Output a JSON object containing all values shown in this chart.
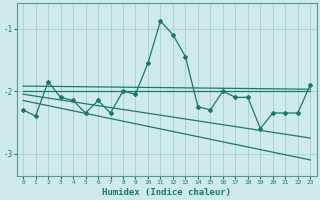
{
  "xlabel": "Humidex (Indice chaleur)",
  "bg_color": "#ceeaea",
  "grid_color": "#aacece",
  "line_color": "#1a7a6a",
  "spine_color": "#5a9a8a",
  "xlim": [
    -0.5,
    23.5
  ],
  "ylim": [
    -3.35,
    -0.6
  ],
  "yticks": [
    -3,
    -2,
    -1
  ],
  "xticks": [
    0,
    1,
    2,
    3,
    4,
    5,
    6,
    7,
    8,
    9,
    10,
    11,
    12,
    13,
    14,
    15,
    16,
    17,
    18,
    19,
    20,
    21,
    22,
    23
  ],
  "line1_x": [
    0,
    1,
    2,
    3,
    4,
    5,
    6,
    7,
    8,
    9,
    10,
    11,
    12,
    13,
    14,
    15,
    16,
    17,
    18,
    19,
    20,
    21,
    22,
    23
  ],
  "line1_y": [
    -2.3,
    -2.4,
    -1.85,
    -2.1,
    -2.15,
    -2.35,
    -2.15,
    -2.35,
    -2.0,
    -2.05,
    -1.55,
    -0.88,
    -1.1,
    -1.45,
    -2.25,
    -2.3,
    -2.0,
    -2.1,
    -2.1,
    -2.6,
    -2.35,
    -2.35,
    -2.35,
    -1.9
  ],
  "line2_x": [
    0,
    23
  ],
  "line2_y": [
    -1.92,
    -1.97
  ],
  "line3_x": [
    0,
    23
  ],
  "line3_y": [
    -2.0,
    -2.0
  ],
  "line4_x": [
    0,
    23
  ],
  "line4_y": [
    -2.05,
    -2.75
  ],
  "line5_x": [
    0,
    23
  ],
  "line5_y": [
    -2.15,
    -3.1
  ]
}
